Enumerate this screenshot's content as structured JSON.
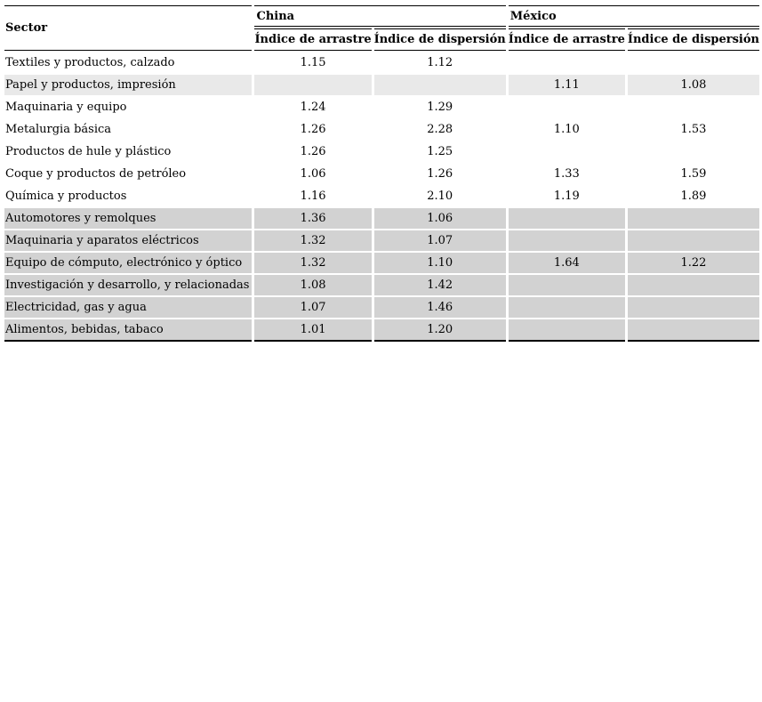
{
  "page": {
    "background_color": "#ffffff",
    "row_colors": {
      "light_gray": "#e9e9e9",
      "gray": "#d2d2d2",
      "border": "#000000"
    }
  },
  "table": {
    "header": {
      "sector": "Sector",
      "groups": [
        {
          "label": "China",
          "columns": [
            "Índice de arrastre",
            "Índice de dispersión"
          ]
        },
        {
          "label": "México",
          "columns": [
            "Índice de arrastre",
            "Índice de dispersión"
          ]
        }
      ]
    },
    "rows": [
      {
        "sector": "Textiles y productos, calzado",
        "china_arrastre": "1.15",
        "china_dispersion": "1.12",
        "mexico_arrastre": "",
        "mexico_dispersion": "",
        "shade": "white"
      },
      {
        "sector": "Papel y productos, impresión",
        "china_arrastre": "",
        "china_dispersion": "",
        "mexico_arrastre": "1.11",
        "mexico_dispersion": "1.08",
        "shade": "light-gray"
      },
      {
        "sector": "Maquinaria y equipo",
        "china_arrastre": "1.24",
        "china_dispersion": "1.29",
        "mexico_arrastre": "",
        "mexico_dispersion": "",
        "shade": "white"
      },
      {
        "sector": "Metalurgia básica",
        "china_arrastre": "1.26",
        "china_dispersion": "2.28",
        "mexico_arrastre": "1.10",
        "mexico_dispersion": "1.53",
        "shade": "white"
      },
      {
        "sector": "Productos de hule y plástico",
        "china_arrastre": "1.26",
        "china_dispersion": "1.25",
        "mexico_arrastre": "",
        "mexico_dispersion": "",
        "shade": "white"
      },
      {
        "sector": "Coque y productos de petróleo",
        "china_arrastre": "1.06",
        "china_dispersion": "1.26",
        "mexico_arrastre": "1.33",
        "mexico_dispersion": "1.59",
        "shade": "white"
      },
      {
        "sector": "Química y productos",
        "china_arrastre": "1.16",
        "china_dispersion": "2.10",
        "mexico_arrastre": "1.19",
        "mexico_dispersion": "1.89",
        "shade": "white"
      },
      {
        "sector": "Automotores y remolques",
        "china_arrastre": "1.36",
        "china_dispersion": "1.06",
        "mexico_arrastre": "",
        "mexico_dispersion": "",
        "shade": "gray"
      },
      {
        "sector": "Maquinaria y aparatos eléctricos",
        "china_arrastre": "1.32",
        "china_dispersion": "1.07",
        "mexico_arrastre": "",
        "mexico_dispersion": "",
        "shade": "gray"
      },
      {
        "sector": "Equipo de cómputo, electrónico y óptico",
        "china_arrastre": "1.32",
        "china_dispersion": "1.10",
        "mexico_arrastre": "1.64",
        "mexico_dispersion": "1.22",
        "shade": "gray"
      },
      {
        "sector": "Investigación y desarrollo, y relacionadas",
        "china_arrastre": "1.08",
        "china_dispersion": "1.42",
        "mexico_arrastre": "",
        "mexico_dispersion": "",
        "shade": "gray"
      },
      {
        "sector": "Electricidad, gas y agua",
        "china_arrastre": "1.07",
        "china_dispersion": "1.46",
        "mexico_arrastre": "",
        "mexico_dispersion": "",
        "shade": "gray"
      },
      {
        "sector": "Alimentos, bebidas, tabaco",
        "china_arrastre": "1.01",
        "china_dispersion": "1.20",
        "mexico_arrastre": "",
        "mexico_dispersion": "",
        "shade": "gray"
      }
    ]
  },
  "chart_data": {
    "type": "table",
    "title": "",
    "column_groups": [
      "Sector",
      "China",
      "China",
      "México",
      "México"
    ],
    "columns": [
      "Sector",
      "Índice de arrastre",
      "Índice de dispersión",
      "Índice de arrastre",
      "Índice de dispersión"
    ],
    "rows": [
      [
        "Textiles y productos, calzado",
        1.15,
        1.12,
        null,
        null
      ],
      [
        "Papel y productos, impresión",
        null,
        null,
        1.11,
        1.08
      ],
      [
        "Maquinaria y equipo",
        1.24,
        1.29,
        null,
        null
      ],
      [
        "Metalurgia básica",
        1.26,
        2.28,
        1.1,
        1.53
      ],
      [
        "Productos de hule y plástico",
        1.26,
        1.25,
        null,
        null
      ],
      [
        "Coque y productos de petróleo",
        1.06,
        1.26,
        1.33,
        1.59
      ],
      [
        "Química y productos",
        1.16,
        2.1,
        1.19,
        1.89
      ],
      [
        "Automotores y remolques",
        1.36,
        1.06,
        null,
        null
      ],
      [
        "Maquinaria y aparatos eléctricos",
        1.32,
        1.07,
        null,
        null
      ],
      [
        "Equipo de cómputo, electrónico y óptico",
        1.32,
        1.1,
        1.64,
        1.22
      ],
      [
        "Investigación y desarrollo, y relacionadas",
        1.08,
        1.42,
        null,
        null
      ],
      [
        "Electricidad, gas y agua",
        1.07,
        1.46,
        null,
        null
      ],
      [
        "Alimentos, bebidas, tabaco",
        1.01,
        1.2,
        null,
        null
      ]
    ]
  }
}
